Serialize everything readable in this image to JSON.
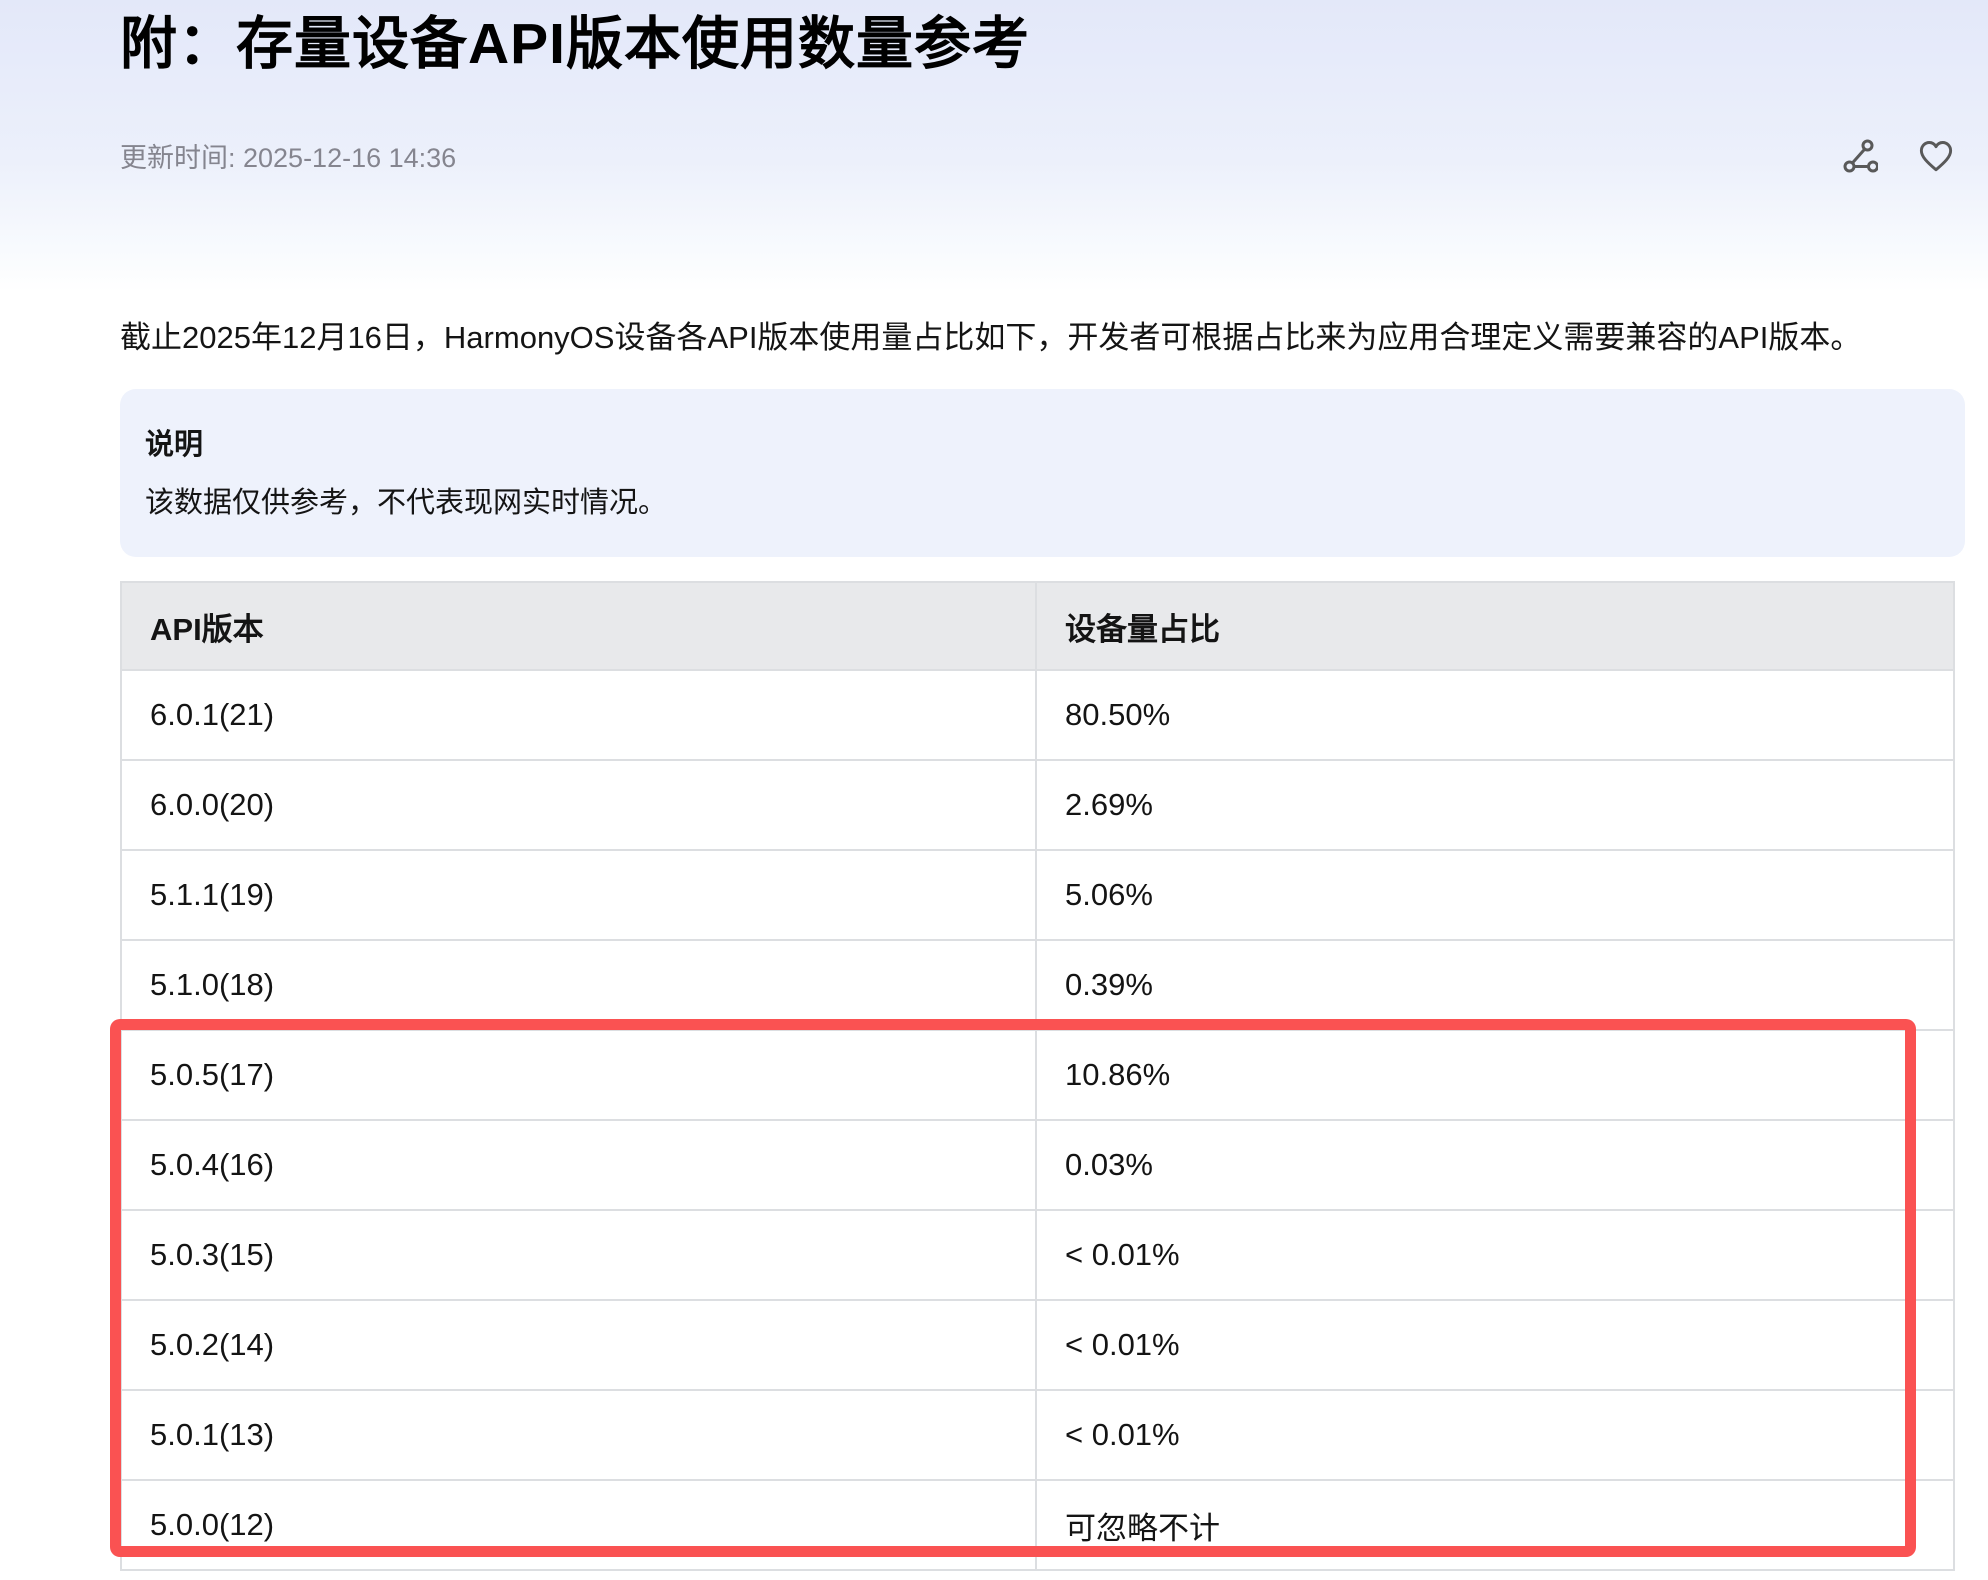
{
  "page": {
    "title": "附：存量设备API版本使用数量参考",
    "updated": "更新时间: 2025-12-16 14:36",
    "intro": "截止2025年12月16日，HarmonyOS设备各API版本使用量占比如下，开发者可根据占比来为应用合理定义需要兼容的API版本。",
    "note": {
      "title": "说明",
      "body": "该数据仅供参考，不代表现网实时情况。"
    }
  },
  "actions": {
    "share_icon": "share-icon",
    "favorite_icon": "heart-icon"
  },
  "table": {
    "headers": [
      "API版本",
      "设备量占比"
    ],
    "rows": [
      {
        "version": "6.0.1(21)",
        "share": "80.50%"
      },
      {
        "version": "6.0.0(20)",
        "share": "2.69%"
      },
      {
        "version": "5.1.1(19)",
        "share": "5.06%"
      },
      {
        "version": "5.1.0(18)",
        "share": "0.39%"
      },
      {
        "version": "5.0.5(17)",
        "share": "10.86%"
      },
      {
        "version": "5.0.4(16)",
        "share": "0.03%"
      },
      {
        "version": "5.0.3(15)",
        "share": "< 0.01%"
      },
      {
        "version": "5.0.2(14)",
        "share": "< 0.01%"
      },
      {
        "version": "5.0.1(13)",
        "share": "< 0.01%"
      },
      {
        "version": "5.0.0(12)",
        "share": "可忽略不计"
      }
    ]
  },
  "annotation": {
    "color": "#fa5252",
    "highlighted_rows": [
      "5.0.5(17)",
      "5.0.4(16)",
      "5.0.3(15)",
      "5.0.2(14)",
      "5.0.1(13)",
      "5.0.0(12)"
    ]
  }
}
